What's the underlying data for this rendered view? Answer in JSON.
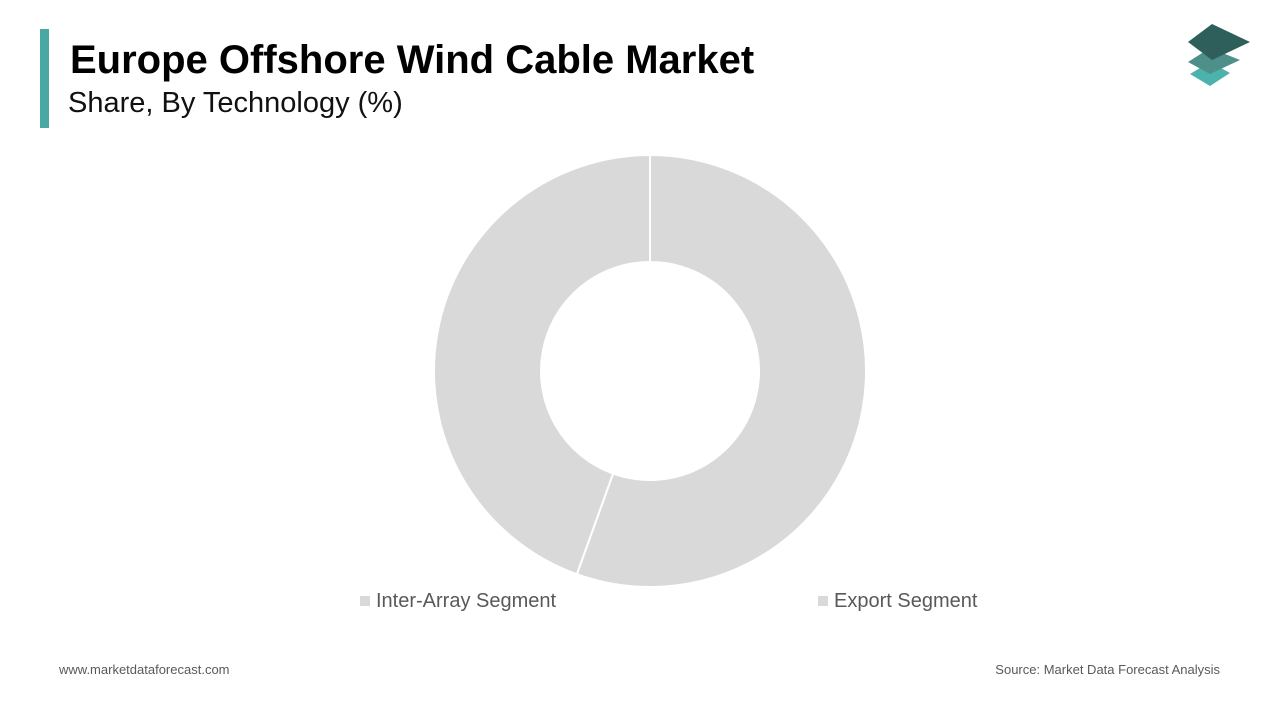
{
  "header": {
    "title": "Europe Offshore Wind Cable Market",
    "subtitle": "Share, By Technology (%)"
  },
  "logo": {
    "icon": "stacked-layers-logo-icon",
    "colors": [
      "#2f5f5b",
      "#4e8f8a",
      "#4bb3ac"
    ]
  },
  "chart_data": {
    "type": "pie",
    "donut": true,
    "title": "Europe Offshore Wind Cable Market",
    "subtitle": "Share, By Technology (%)",
    "categories": [
      "Inter-Array Segment",
      "Export Segment"
    ],
    "values": [
      44.5,
      55.5
    ],
    "colors": [
      "#d9d9d9",
      "#d9d9d9"
    ],
    "start_angle_deg": 0,
    "direction": "clockwise",
    "legend_placement": "bottom"
  },
  "footer": {
    "website": "www.marketdataforecast.com",
    "source": "Source: Market Data Forecast Analysis"
  },
  "accent_color": "#4aa8a4"
}
